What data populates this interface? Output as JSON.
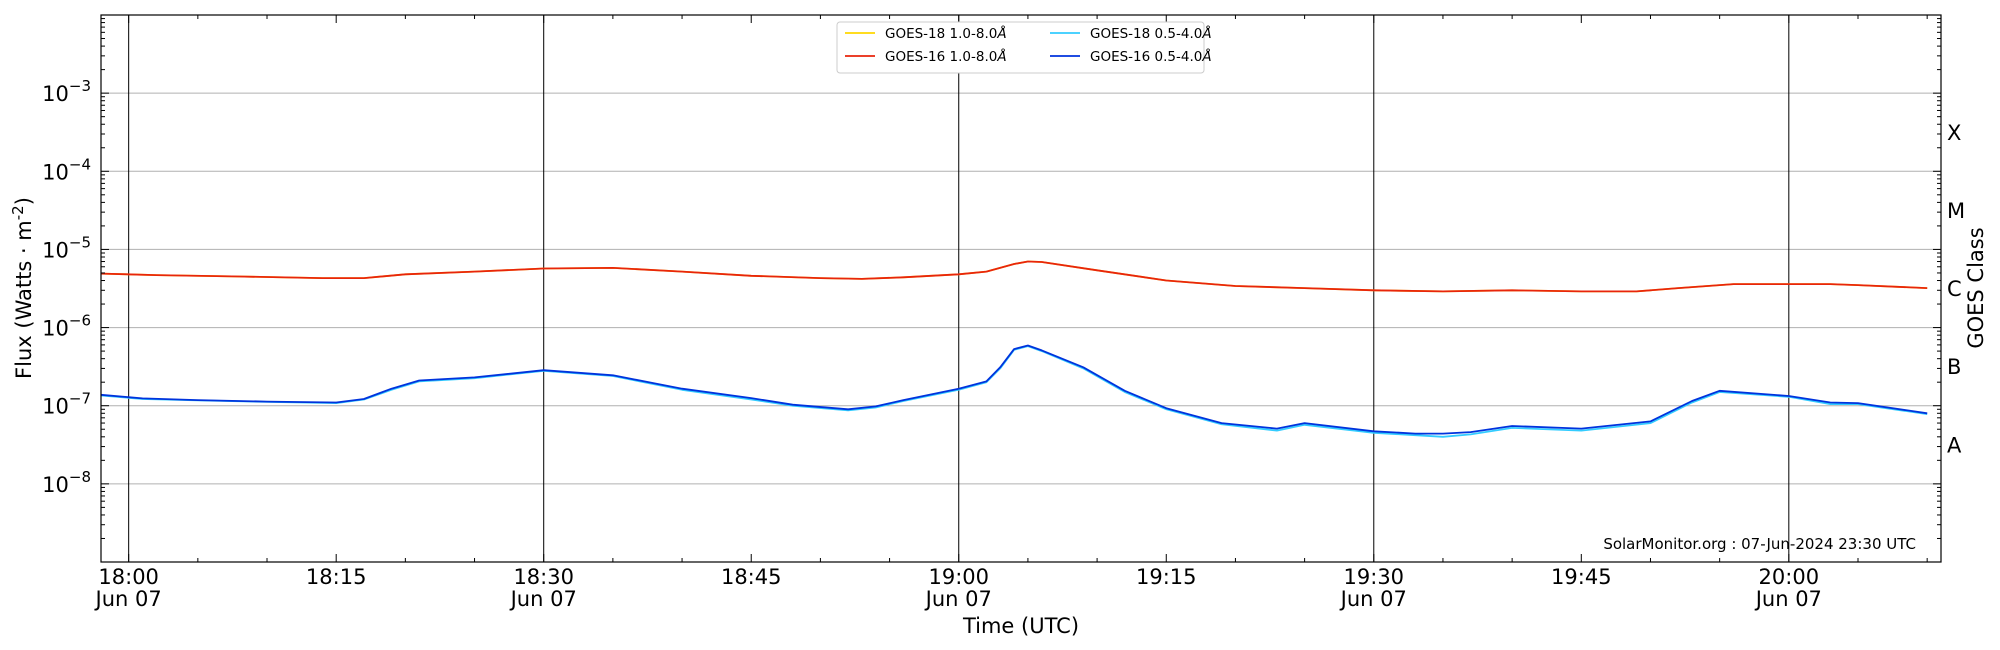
{
  "chart_data": {
    "type": "line",
    "xlabel": "Time (UTC)",
    "ylabel": "Flux (Watts · m",
    "ylabel_sup": "-2",
    "ylabel_close": ")",
    "right_label": "GOES Class",
    "y_scale": "log",
    "ylim": [
      1e-09,
      0.01
    ],
    "x_range": [
      "17:58",
      "20:11"
    ],
    "grid": "horizontal",
    "legend_placement": "top-center",
    "y_ticks": [
      {
        "value": 1e-08,
        "base": "10",
        "exp": "−8"
      },
      {
        "value": 1e-07,
        "base": "10",
        "exp": "−7"
      },
      {
        "value": 1e-06,
        "base": "10",
        "exp": "−6"
      },
      {
        "value": 1e-05,
        "base": "10",
        "exp": "−5"
      },
      {
        "value": 0.0001,
        "base": "10",
        "exp": "−4"
      },
      {
        "value": 0.001,
        "base": "10",
        "exp": "−3"
      }
    ],
    "x_ticks": [
      {
        "time": "18:00",
        "label": "18:00",
        "sub": "Jun 07",
        "major": true
      },
      {
        "time": "18:15",
        "label": "18:15",
        "sub": "",
        "major": false
      },
      {
        "time": "18:30",
        "label": "18:30",
        "sub": "Jun 07",
        "major": true
      },
      {
        "time": "18:45",
        "label": "18:45",
        "sub": "",
        "major": false
      },
      {
        "time": "19:00",
        "label": "19:00",
        "sub": "Jun 07",
        "major": true
      },
      {
        "time": "19:15",
        "label": "19:15",
        "sub": "",
        "major": false
      },
      {
        "time": "19:30",
        "label": "19:30",
        "sub": "Jun 07",
        "major": true
      },
      {
        "time": "19:45",
        "label": "19:45",
        "sub": "",
        "major": false
      },
      {
        "time": "20:00",
        "label": "20:00",
        "sub": "Jun 07",
        "major": true
      }
    ],
    "goes_classes": [
      {
        "label": "A",
        "value": 3.2e-08
      },
      {
        "label": "B",
        "value": 3.2e-07
      },
      {
        "label": "C",
        "value": 3.2e-06
      },
      {
        "label": "M",
        "value": 3.2e-05
      },
      {
        "label": "X",
        "value": 0.00032
      }
    ],
    "series": [
      {
        "name": "GOES-18 1.0-8.0",
        "color": "#FFD700",
        "points": [
          [
            "17:58",
            4.9e-06
          ],
          [
            "18:02",
            4.7e-06
          ],
          [
            "18:08",
            4.5e-06
          ],
          [
            "18:14",
            4.3e-06
          ],
          [
            "18:17",
            4.3e-06
          ],
          [
            "18:20",
            4.8e-06
          ],
          [
            "18:25",
            5.2e-06
          ],
          [
            "18:30",
            5.7e-06
          ],
          [
            "18:35",
            5.8e-06
          ],
          [
            "18:40",
            5.2e-06
          ],
          [
            "18:45",
            4.6e-06
          ],
          [
            "18:50",
            4.3e-06
          ],
          [
            "18:53",
            4.2e-06
          ],
          [
            "18:56",
            4.4e-06
          ],
          [
            "19:00",
            4.8e-06
          ],
          [
            "19:02",
            5.2e-06
          ],
          [
            "19:04",
            6.5e-06
          ],
          [
            "19:05",
            7e-06
          ],
          [
            "19:06",
            6.9e-06
          ],
          [
            "19:10",
            5.4e-06
          ],
          [
            "19:15",
            4e-06
          ],
          [
            "19:20",
            3.4e-06
          ],
          [
            "19:25",
            3.2e-06
          ],
          [
            "19:30",
            3e-06
          ],
          [
            "19:35",
            2.9e-06
          ],
          [
            "19:40",
            3e-06
          ],
          [
            "19:45",
            2.9e-06
          ],
          [
            "19:49",
            2.9e-06
          ],
          [
            "19:52",
            3.2e-06
          ],
          [
            "19:56",
            3.6e-06
          ],
          [
            "20:00",
            3.6e-06
          ],
          [
            "20:03",
            3.6e-06
          ],
          [
            "20:05",
            3.5e-06
          ],
          [
            "20:10",
            3.2e-06
          ]
        ]
      },
      {
        "name": "GOES-16 1.0-8.0",
        "color": "#E8250C",
        "points": [
          [
            "17:58",
            4.9e-06
          ],
          [
            "18:02",
            4.7e-06
          ],
          [
            "18:08",
            4.5e-06
          ],
          [
            "18:14",
            4.3e-06
          ],
          [
            "18:17",
            4.3e-06
          ],
          [
            "18:20",
            4.8e-06
          ],
          [
            "18:25",
            5.2e-06
          ],
          [
            "18:30",
            5.7e-06
          ],
          [
            "18:35",
            5.8e-06
          ],
          [
            "18:40",
            5.2e-06
          ],
          [
            "18:45",
            4.6e-06
          ],
          [
            "18:50",
            4.3e-06
          ],
          [
            "18:53",
            4.2e-06
          ],
          [
            "18:56",
            4.4e-06
          ],
          [
            "19:00",
            4.8e-06
          ],
          [
            "19:02",
            5.2e-06
          ],
          [
            "19:04",
            6.5e-06
          ],
          [
            "19:05",
            7e-06
          ],
          [
            "19:06",
            6.9e-06
          ],
          [
            "19:10",
            5.4e-06
          ],
          [
            "19:15",
            4e-06
          ],
          [
            "19:20",
            3.4e-06
          ],
          [
            "19:25",
            3.2e-06
          ],
          [
            "19:30",
            3e-06
          ],
          [
            "19:35",
            2.9e-06
          ],
          [
            "19:40",
            3e-06
          ],
          [
            "19:45",
            2.9e-06
          ],
          [
            "19:49",
            2.9e-06
          ],
          [
            "19:52",
            3.2e-06
          ],
          [
            "19:56",
            3.6e-06
          ],
          [
            "20:00",
            3.6e-06
          ],
          [
            "20:03",
            3.6e-06
          ],
          [
            "20:05",
            3.5e-06
          ],
          [
            "20:10",
            3.2e-06
          ]
        ]
      },
      {
        "name": "GOES-18 0.5-4.0",
        "color": "#33CCFF",
        "points": [
          [
            "17:58",
            1.35e-07
          ],
          [
            "18:01",
            1.22e-07
          ],
          [
            "18:05",
            1.17e-07
          ],
          [
            "18:10",
            1.12e-07
          ],
          [
            "18:15",
            1.08e-07
          ],
          [
            "18:17",
            1.2e-07
          ],
          [
            "18:19",
            1.6e-07
          ],
          [
            "18:21",
            2.05e-07
          ],
          [
            "18:25",
            2.25e-07
          ],
          [
            "18:30",
            2.8e-07
          ],
          [
            "18:35",
            2.4e-07
          ],
          [
            "18:40",
            1.6e-07
          ],
          [
            "18:45",
            1.2e-07
          ],
          [
            "18:48",
            1e-07
          ],
          [
            "18:52",
            8.7e-08
          ],
          [
            "18:54",
            9.5e-08
          ],
          [
            "18:56",
            1.15e-07
          ],
          [
            "19:00",
            1.6e-07
          ],
          [
            "19:02",
            2e-07
          ],
          [
            "19:03",
            3e-07
          ],
          [
            "19:04",
            5.2e-07
          ],
          [
            "19:05",
            5.8e-07
          ],
          [
            "19:06",
            5e-07
          ],
          [
            "19:09",
            3e-07
          ],
          [
            "19:12",
            1.5e-07
          ],
          [
            "19:15",
            9e-08
          ],
          [
            "19:19",
            5.8e-08
          ],
          [
            "19:23",
            4.8e-08
          ],
          [
            "19:25",
            5.7e-08
          ],
          [
            "19:30",
            4.5e-08
          ],
          [
            "19:33",
            4.2e-08
          ],
          [
            "19:35",
            4e-08
          ],
          [
            "19:37",
            4.3e-08
          ],
          [
            "19:40",
            5.2e-08
          ],
          [
            "19:45",
            4.8e-08
          ],
          [
            "19:50",
            6e-08
          ],
          [
            "19:53",
            1.1e-07
          ],
          [
            "19:55",
            1.5e-07
          ],
          [
            "20:00",
            1.3e-07
          ],
          [
            "20:03",
            1.05e-07
          ],
          [
            "20:05",
            1.05e-07
          ],
          [
            "20:10",
            7.8e-08
          ]
        ]
      },
      {
        "name": "GOES-16 0.5-4.0",
        "color": "#0033DD",
        "points": [
          [
            "17:58",
            1.38e-07
          ],
          [
            "18:01",
            1.24e-07
          ],
          [
            "18:05",
            1.18e-07
          ],
          [
            "18:10",
            1.13e-07
          ],
          [
            "18:15",
            1.1e-07
          ],
          [
            "18:17",
            1.22e-07
          ],
          [
            "18:19",
            1.65e-07
          ],
          [
            "18:21",
            2.1e-07
          ],
          [
            "18:25",
            2.3e-07
          ],
          [
            "18:30",
            2.85e-07
          ],
          [
            "18:35",
            2.45e-07
          ],
          [
            "18:40",
            1.65e-07
          ],
          [
            "18:45",
            1.25e-07
          ],
          [
            "18:48",
            1.03e-07
          ],
          [
            "18:52",
            9e-08
          ],
          [
            "18:54",
            9.8e-08
          ],
          [
            "18:56",
            1.18e-07
          ],
          [
            "19:00",
            1.65e-07
          ],
          [
            "19:02",
            2.05e-07
          ],
          [
            "19:03",
            3.1e-07
          ],
          [
            "19:04",
            5.3e-07
          ],
          [
            "19:05",
            5.9e-07
          ],
          [
            "19:06",
            5.1e-07
          ],
          [
            "19:09",
            3.1e-07
          ],
          [
            "19:12",
            1.55e-07
          ],
          [
            "19:15",
            9.3e-08
          ],
          [
            "19:19",
            6e-08
          ],
          [
            "19:23",
            5.1e-08
          ],
          [
            "19:25",
            6e-08
          ],
          [
            "19:30",
            4.7e-08
          ],
          [
            "19:33",
            4.4e-08
          ],
          [
            "19:35",
            4.4e-08
          ],
          [
            "19:37",
            4.6e-08
          ],
          [
            "19:40",
            5.5e-08
          ],
          [
            "19:45",
            5.1e-08
          ],
          [
            "19:50",
            6.3e-08
          ],
          [
            "19:53",
            1.15e-07
          ],
          [
            "19:55",
            1.55e-07
          ],
          [
            "20:00",
            1.33e-07
          ],
          [
            "20:03",
            1.1e-07
          ],
          [
            "20:05",
            1.08e-07
          ],
          [
            "20:10",
            8e-08
          ]
        ]
      }
    ],
    "legend": [
      {
        "name": "GOES-18 1.0-8.0",
        "unit": "Å",
        "color": "#FFD700"
      },
      {
        "name": "GOES-18 0.5-4.0",
        "unit": "Å",
        "color": "#33CCFF"
      },
      {
        "name": "GOES-16 1.0-8.0",
        "unit": "Å",
        "color": "#E8250C"
      },
      {
        "name": "GOES-16 0.5-4.0",
        "unit": "Å",
        "color": "#0033DD"
      }
    ],
    "credit": "SolarMonitor.org : 07-Jun-2024 23:30 UTC"
  }
}
